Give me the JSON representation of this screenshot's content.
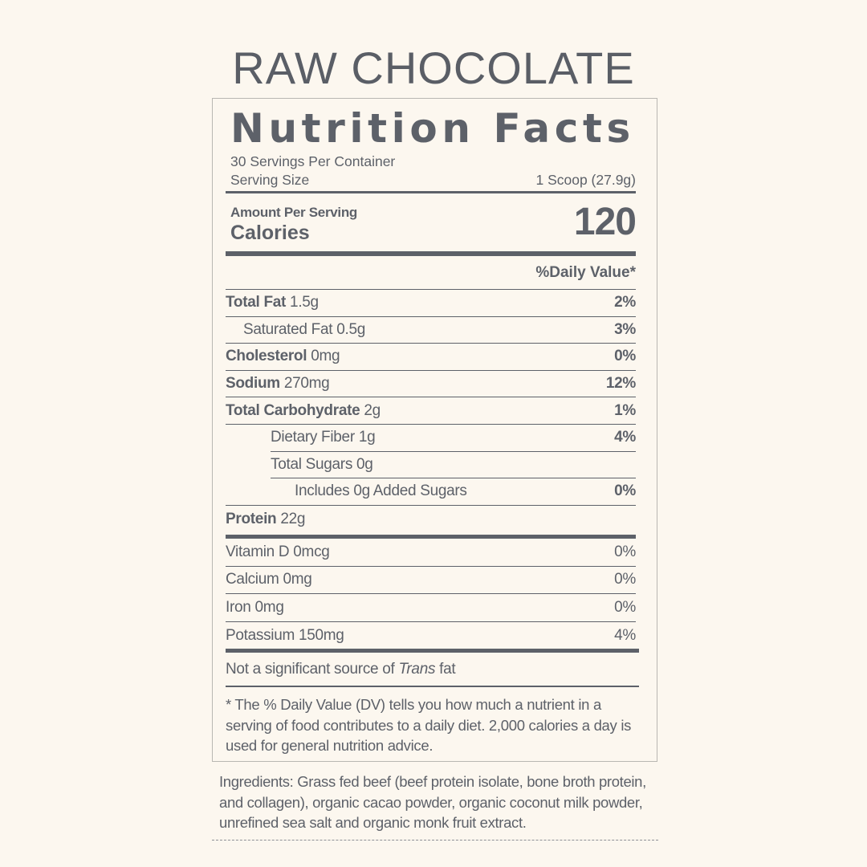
{
  "product_title": "RAW CHOCOLATE",
  "label": {
    "heading": "Nutrition Facts",
    "servings_per_container": "30 Servings Per Container",
    "serving_size_label": "Serving Size",
    "serving_size_value": "1 Scoop (27.9g)",
    "amount_per_serving": "Amount Per Serving",
    "calories_label": "Calories",
    "calories_value": "120",
    "daily_value_header": "%Daily Value*",
    "nutrients": [
      {
        "name": "Total Fat",
        "amount": "1.5g",
        "dv": "2%"
      },
      {
        "name": "Saturated Fat",
        "amount": "0.5g",
        "dv": "3%"
      },
      {
        "name": "Cholesterol",
        "amount": "0mg",
        "dv": "0%"
      },
      {
        "name": "Sodium",
        "amount": "270mg",
        "dv": "12%"
      },
      {
        "name": "Total Carbohydrate",
        "amount": "2g",
        "dv": "1%"
      },
      {
        "name": "Dietary Fiber",
        "amount": "1g",
        "dv": "4%"
      },
      {
        "name": "Total Sugars",
        "amount": "0g",
        "dv": ""
      },
      {
        "name": "Includes 0g Added Sugars",
        "amount": "",
        "dv": "0%"
      },
      {
        "name": "Protein",
        "amount": "22g",
        "dv": ""
      }
    ],
    "vitamins": [
      {
        "name": "Vitamin D 0mcg",
        "dv": "0%"
      },
      {
        "name": "Calcium 0mg",
        "dv": "0%"
      },
      {
        "name": "Iron 0mg",
        "dv": "0%"
      },
      {
        "name": "Potassium 150mg",
        "dv": "4%"
      }
    ],
    "trans_prefix": "Not a significant source of ",
    "trans_italic": "Trans",
    "trans_suffix": " fat",
    "footnote": "* The % Daily Value (DV) tells you how much a nutrient in a serving of food contributes to a daily diet. 2,000 calories a day is used for general nutrition advice."
  },
  "ingredients": "Ingredients: Grass fed beef (beef protein isolate, bone broth protein, and collagen), organic cacao powder, organic coconut milk powder, unrefined sea salt and organic monk fruit extract."
}
